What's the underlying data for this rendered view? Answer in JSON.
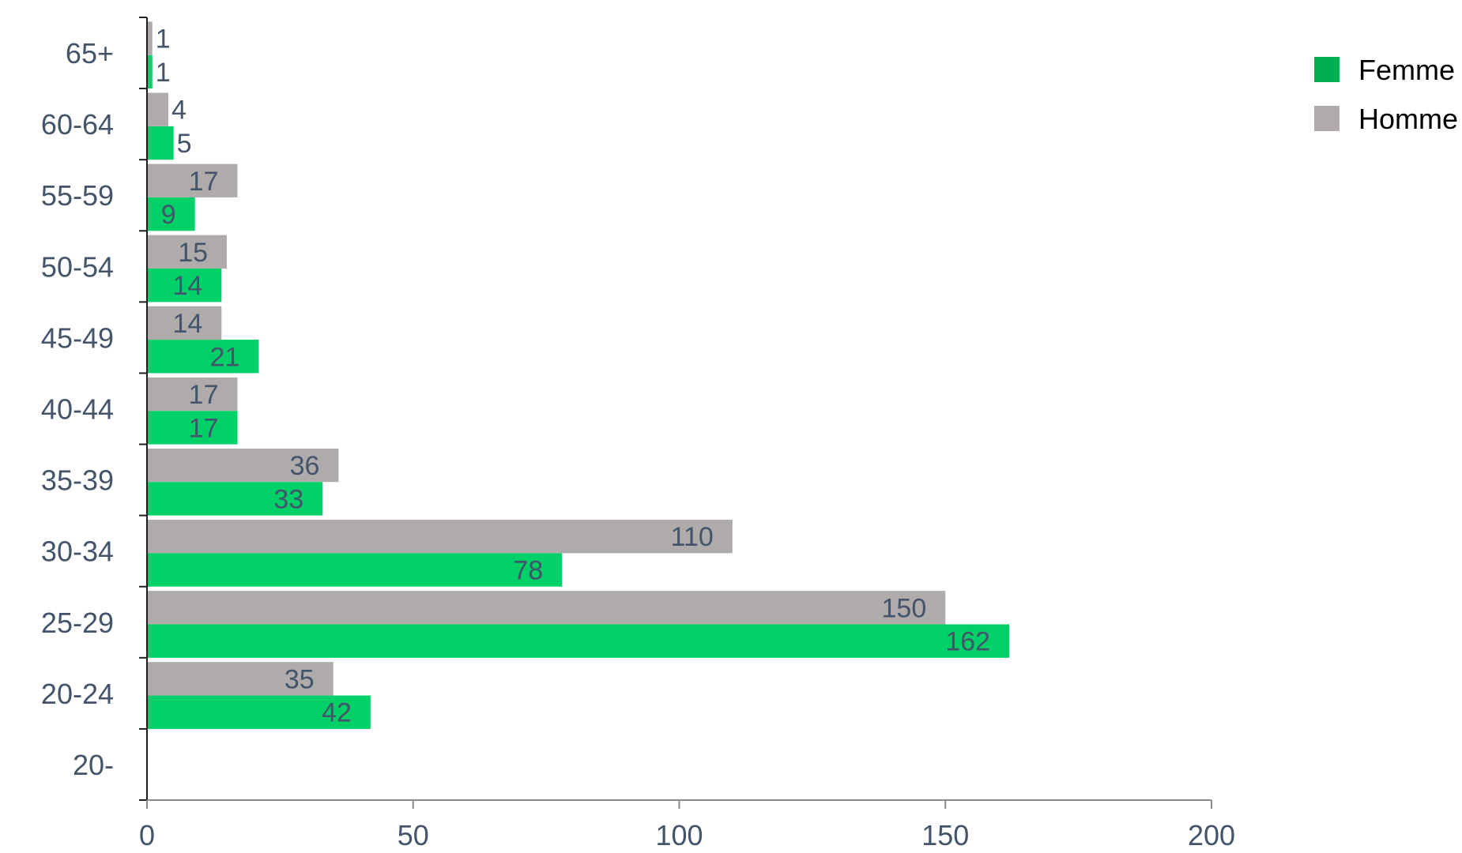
{
  "chart_data": {
    "type": "bar",
    "orientation": "horizontal",
    "title": "",
    "xlabel": "",
    "ylabel": "",
    "categories": [
      "20-",
      "20-24",
      "25-29",
      "30-34",
      "35-39",
      "40-44",
      "45-49",
      "50-54",
      "55-59",
      "60-64",
      "65+"
    ],
    "series": [
      {
        "name": "Femme",
        "color": "#00d068",
        "values": [
          null,
          42,
          162,
          78,
          33,
          17,
          21,
          14,
          9,
          5,
          1
        ]
      },
      {
        "name": "Homme",
        "color": "#afabab",
        "values": [
          null,
          35,
          150,
          110,
          36,
          17,
          14,
          15,
          17,
          4,
          1
        ]
      }
    ],
    "xlim": [
      0,
      200
    ],
    "xticks": [
      0,
      50,
      100,
      150,
      200
    ],
    "legend": {
      "position": "top-right",
      "items": [
        {
          "label": "Femme",
          "color": "#00b050"
        },
        {
          "label": "Homme",
          "color": "#afabab"
        }
      ]
    },
    "grid": false
  }
}
